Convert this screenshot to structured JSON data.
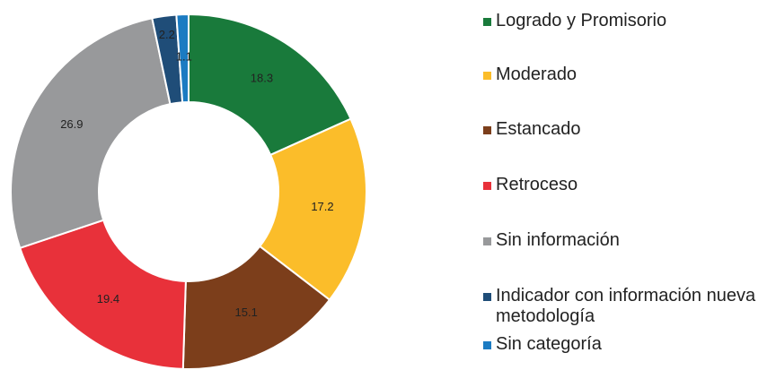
{
  "chart_data": {
    "type": "pie",
    "categories": [
      "Logrado y Promisorio",
      "Moderado",
      "Estancado",
      "Retroceso",
      "Sin información",
      "Indicador con información nueva metodología",
      "Sin categoría"
    ],
    "values": [
      18.3,
      17.2,
      15.1,
      19.4,
      26.9,
      2.2,
      1.1
    ],
    "colors": [
      "#197a3b",
      "#fbbd2a",
      "#7c3e1b",
      "#e8313a",
      "#98999b",
      "#1f4d78",
      "#1b7bc2"
    ],
    "donut": true
  }
}
